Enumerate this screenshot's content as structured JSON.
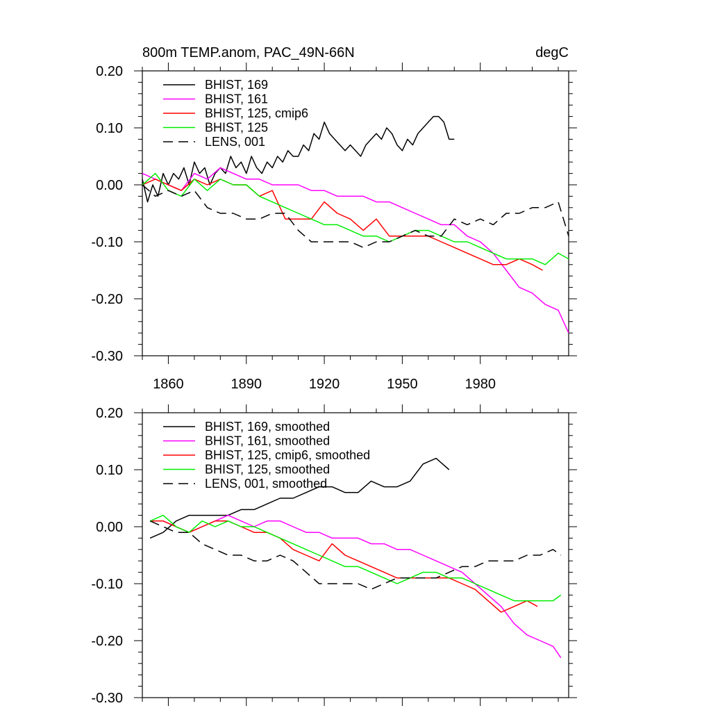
{
  "chart_data": [
    {
      "type": "line",
      "title": "800m TEMP.anom, PAC_49N-66N",
      "units": "degC",
      "xlim": [
        1850,
        2014
      ],
      "ylim": [
        -0.3,
        0.2
      ],
      "x_ticks": [
        1860,
        1890,
        1920,
        1950,
        1980
      ],
      "x_tick_labels": [
        "1860",
        "1890",
        "1920",
        "1950",
        "1980"
      ],
      "y_ticks": [
        0.2,
        0.1,
        0.0,
        -0.1,
        -0.2,
        -0.3
      ],
      "y_tick_labels": [
        "0.20",
        "0.10",
        "0.00",
        "-0.10",
        "-0.20",
        "-0.30"
      ],
      "legend_position": "top-left",
      "series": [
        {
          "name": "BHIST, 169",
          "color": "#000000",
          "dash": "solid",
          "x": [
            1850,
            1852,
            1854,
            1856,
            1858,
            1860,
            1862,
            1864,
            1866,
            1868,
            1870,
            1872,
            1874,
            1876,
            1878,
            1880,
            1882,
            1884,
            1886,
            1888,
            1890,
            1892,
            1894,
            1896,
            1898,
            1900,
            1902,
            1904,
            1906,
            1908,
            1910,
            1912,
            1914,
            1916,
            1918,
            1920,
            1922,
            1924,
            1926,
            1928,
            1930,
            1932,
            1934,
            1936,
            1938,
            1940,
            1942,
            1944,
            1946,
            1948,
            1950,
            1952,
            1954,
            1956,
            1958,
            1960,
            1962,
            1964,
            1966,
            1968,
            1970
          ],
          "values": [
            0.01,
            -0.03,
            0.0,
            -0.02,
            0.02,
            0.0,
            0.02,
            0.01,
            0.03,
            0.0,
            0.04,
            0.02,
            0.03,
            0.0,
            0.02,
            0.03,
            0.02,
            0.05,
            0.03,
            0.04,
            0.02,
            0.05,
            0.03,
            0.02,
            0.04,
            0.03,
            0.05,
            0.04,
            0.06,
            0.05,
            0.05,
            0.07,
            0.06,
            0.09,
            0.08,
            0.11,
            0.09,
            0.08,
            0.07,
            0.06,
            0.07,
            0.06,
            0.05,
            0.07,
            0.08,
            0.09,
            0.08,
            0.1,
            0.09,
            0.07,
            0.06,
            0.08,
            0.07,
            0.09,
            0.1,
            0.11,
            0.12,
            0.12,
            0.11,
            0.08,
            0.08
          ]
        },
        {
          "name": "BHIST, 161",
          "color": "#ff00ff",
          "dash": "solid",
          "x": [
            1850,
            1855,
            1860,
            1865,
            1870,
            1875,
            1880,
            1885,
            1890,
            1895,
            1900,
            1905,
            1910,
            1915,
            1920,
            1925,
            1930,
            1935,
            1940,
            1945,
            1950,
            1955,
            1960,
            1965,
            1970,
            1975,
            1980,
            1985,
            1990,
            1995,
            2000,
            2005,
            2010,
            2014
          ],
          "values": [
            0.02,
            0.01,
            0.0,
            -0.01,
            0.02,
            0.01,
            0.03,
            0.02,
            0.01,
            0.01,
            0.0,
            0.0,
            0.0,
            -0.01,
            -0.01,
            -0.02,
            -0.02,
            -0.02,
            -0.03,
            -0.03,
            -0.04,
            -0.05,
            -0.06,
            -0.07,
            -0.07,
            -0.09,
            -0.1,
            -0.12,
            -0.15,
            -0.18,
            -0.19,
            -0.21,
            -0.22,
            -0.26
          ]
        },
        {
          "name": "BHIST, 125, cmip6",
          "color": "#ff0000",
          "dash": "solid",
          "x": [
            1850,
            1855,
            1860,
            1865,
            1870,
            1875,
            1880,
            1885,
            1890,
            1895,
            1900,
            1905,
            1910,
            1915,
            1920,
            1925,
            1930,
            1935,
            1940,
            1945,
            1950,
            1955,
            1960,
            1965,
            1970,
            1975,
            1980,
            1985,
            1990,
            1995,
            2000,
            2004
          ],
          "values": [
            0.0,
            0.01,
            0.0,
            -0.01,
            0.01,
            0.0,
            0.01,
            0.0,
            0.0,
            -0.02,
            -0.01,
            -0.06,
            -0.06,
            -0.06,
            -0.03,
            -0.05,
            -0.06,
            -0.08,
            -0.06,
            -0.09,
            -0.09,
            -0.09,
            -0.09,
            -0.1,
            -0.11,
            -0.12,
            -0.13,
            -0.14,
            -0.14,
            -0.13,
            -0.14,
            -0.15
          ]
        },
        {
          "name": "BHIST, 125",
          "color": "#00ee00",
          "dash": "solid",
          "x": [
            1850,
            1855,
            1860,
            1865,
            1870,
            1875,
            1880,
            1885,
            1890,
            1895,
            1900,
            1905,
            1910,
            1915,
            1920,
            1925,
            1930,
            1935,
            1940,
            1945,
            1950,
            1955,
            1960,
            1965,
            1970,
            1975,
            1980,
            1985,
            1990,
            1995,
            2000,
            2005,
            2010,
            2014
          ],
          "values": [
            0.0,
            0.02,
            -0.01,
            -0.02,
            0.01,
            -0.01,
            0.01,
            0.0,
            0.0,
            -0.02,
            -0.03,
            -0.04,
            -0.05,
            -0.06,
            -0.07,
            -0.07,
            -0.08,
            -0.09,
            -0.09,
            -0.1,
            -0.09,
            -0.08,
            -0.08,
            -0.09,
            -0.1,
            -0.1,
            -0.11,
            -0.12,
            -0.13,
            -0.13,
            -0.13,
            -0.14,
            -0.12,
            -0.13
          ]
        },
        {
          "name": "LENS, 001",
          "color": "#000000",
          "dash": "dashed",
          "x": [
            1850,
            1855,
            1860,
            1865,
            1870,
            1875,
            1880,
            1885,
            1890,
            1895,
            1900,
            1905,
            1910,
            1915,
            1920,
            1925,
            1930,
            1935,
            1940,
            1945,
            1950,
            1955,
            1960,
            1965,
            1970,
            1975,
            1980,
            1985,
            1990,
            1995,
            2000,
            2005,
            2010,
            2014
          ],
          "values": [
            0.0,
            -0.02,
            -0.01,
            -0.02,
            -0.01,
            -0.04,
            -0.05,
            -0.05,
            -0.06,
            -0.06,
            -0.05,
            -0.05,
            -0.08,
            -0.1,
            -0.1,
            -0.1,
            -0.1,
            -0.11,
            -0.1,
            -0.1,
            -0.09,
            -0.08,
            -0.09,
            -0.09,
            -0.06,
            -0.07,
            -0.06,
            -0.07,
            -0.05,
            -0.05,
            -0.04,
            -0.04,
            -0.03,
            -0.09
          ]
        }
      ]
    },
    {
      "type": "line",
      "title": "",
      "xlim": [
        1850,
        2014
      ],
      "ylim": [
        -0.3,
        0.2
      ],
      "x_ticks": [
        1860,
        1890,
        1920,
        1950,
        1980
      ],
      "y_ticks": [
        0.2,
        0.1,
        0.0,
        -0.1,
        -0.2,
        -0.3
      ],
      "y_tick_labels": [
        "0.20",
        "0.10",
        "0.00",
        "-0.10",
        "-0.20",
        "-0.30"
      ],
      "legend_position": "top-left",
      "series": [
        {
          "name": "BHIST, 169, smoothed",
          "color": "#000000",
          "dash": "solid",
          "x": [
            1853,
            1858,
            1863,
            1868,
            1873,
            1878,
            1883,
            1888,
            1893,
            1898,
            1903,
            1908,
            1913,
            1918,
            1923,
            1928,
            1933,
            1938,
            1943,
            1948,
            1953,
            1958,
            1963,
            1968
          ],
          "values": [
            -0.02,
            -0.01,
            0.01,
            0.02,
            0.02,
            0.02,
            0.02,
            0.03,
            0.03,
            0.04,
            0.05,
            0.05,
            0.06,
            0.07,
            0.07,
            0.06,
            0.06,
            0.08,
            0.07,
            0.07,
            0.08,
            0.11,
            0.12,
            0.1
          ]
        },
        {
          "name": "BHIST, 161, smoothed",
          "color": "#ff00ff",
          "dash": "solid",
          "x": [
            1853,
            1858,
            1863,
            1868,
            1873,
            1878,
            1883,
            1888,
            1893,
            1898,
            1903,
            1908,
            1913,
            1918,
            1923,
            1928,
            1933,
            1938,
            1943,
            1948,
            1953,
            1958,
            1963,
            1968,
            1973,
            1978,
            1983,
            1988,
            1993,
            1998,
            2003,
            2008,
            2011
          ],
          "values": [
            0.01,
            0.01,
            0.0,
            -0.01,
            0.0,
            0.01,
            0.02,
            0.01,
            0.0,
            0.01,
            0.01,
            0.0,
            -0.01,
            -0.01,
            -0.02,
            -0.02,
            -0.02,
            -0.03,
            -0.03,
            -0.04,
            -0.04,
            -0.05,
            -0.06,
            -0.07,
            -0.08,
            -0.1,
            -0.12,
            -0.14,
            -0.17,
            -0.19,
            -0.2,
            -0.21,
            -0.23
          ]
        },
        {
          "name": "BHIST, 125, cmip6, smoothed",
          "color": "#ff0000",
          "dash": "solid",
          "x": [
            1853,
            1858,
            1863,
            1868,
            1873,
            1878,
            1883,
            1888,
            1893,
            1898,
            1903,
            1908,
            1913,
            1918,
            1923,
            1928,
            1933,
            1938,
            1943,
            1948,
            1953,
            1958,
            1963,
            1968,
            1973,
            1978,
            1983,
            1988,
            1993,
            1998,
            2002
          ],
          "values": [
            0.01,
            0.01,
            0.0,
            -0.01,
            0.0,
            0.01,
            0.01,
            0.0,
            -0.01,
            -0.01,
            -0.02,
            -0.04,
            -0.05,
            -0.06,
            -0.03,
            -0.05,
            -0.06,
            -0.07,
            -0.08,
            -0.09,
            -0.09,
            -0.09,
            -0.09,
            -0.09,
            -0.1,
            -0.11,
            -0.13,
            -0.15,
            -0.14,
            -0.13,
            -0.14
          ]
        },
        {
          "name": "BHIST, 125, smoothed",
          "color": "#00ee00",
          "dash": "solid",
          "x": [
            1853,
            1858,
            1863,
            1868,
            1873,
            1878,
            1883,
            1888,
            1893,
            1898,
            1903,
            1908,
            1913,
            1918,
            1923,
            1928,
            1933,
            1938,
            1943,
            1948,
            1953,
            1958,
            1963,
            1968,
            1973,
            1978,
            1983,
            1988,
            1993,
            1998,
            2003,
            2008,
            2011
          ],
          "values": [
            0.01,
            0.02,
            0.0,
            -0.01,
            0.01,
            0.0,
            0.01,
            0.0,
            0.0,
            -0.01,
            -0.02,
            -0.03,
            -0.04,
            -0.05,
            -0.06,
            -0.07,
            -0.07,
            -0.08,
            -0.09,
            -0.1,
            -0.09,
            -0.08,
            -0.08,
            -0.09,
            -0.09,
            -0.1,
            -0.11,
            -0.12,
            -0.13,
            -0.13,
            -0.13,
            -0.13,
            -0.12
          ]
        },
        {
          "name": "LENS, 001, smoothed",
          "color": "#000000",
          "dash": "dashed",
          "x": [
            1853,
            1858,
            1863,
            1868,
            1873,
            1878,
            1883,
            1888,
            1893,
            1898,
            1903,
            1908,
            1913,
            1918,
            1923,
            1928,
            1933,
            1938,
            1943,
            1948,
            1953,
            1958,
            1963,
            1968,
            1973,
            1978,
            1983,
            1988,
            1993,
            1998,
            2003,
            2008,
            2011
          ],
          "values": [
            0.01,
            0.0,
            -0.01,
            -0.01,
            -0.03,
            -0.04,
            -0.05,
            -0.05,
            -0.06,
            -0.06,
            -0.05,
            -0.06,
            -0.08,
            -0.1,
            -0.1,
            -0.1,
            -0.1,
            -0.11,
            -0.1,
            -0.09,
            -0.09,
            -0.09,
            -0.09,
            -0.08,
            -0.07,
            -0.07,
            -0.06,
            -0.06,
            -0.06,
            -0.05,
            -0.05,
            -0.04,
            -0.05
          ]
        }
      ]
    }
  ]
}
